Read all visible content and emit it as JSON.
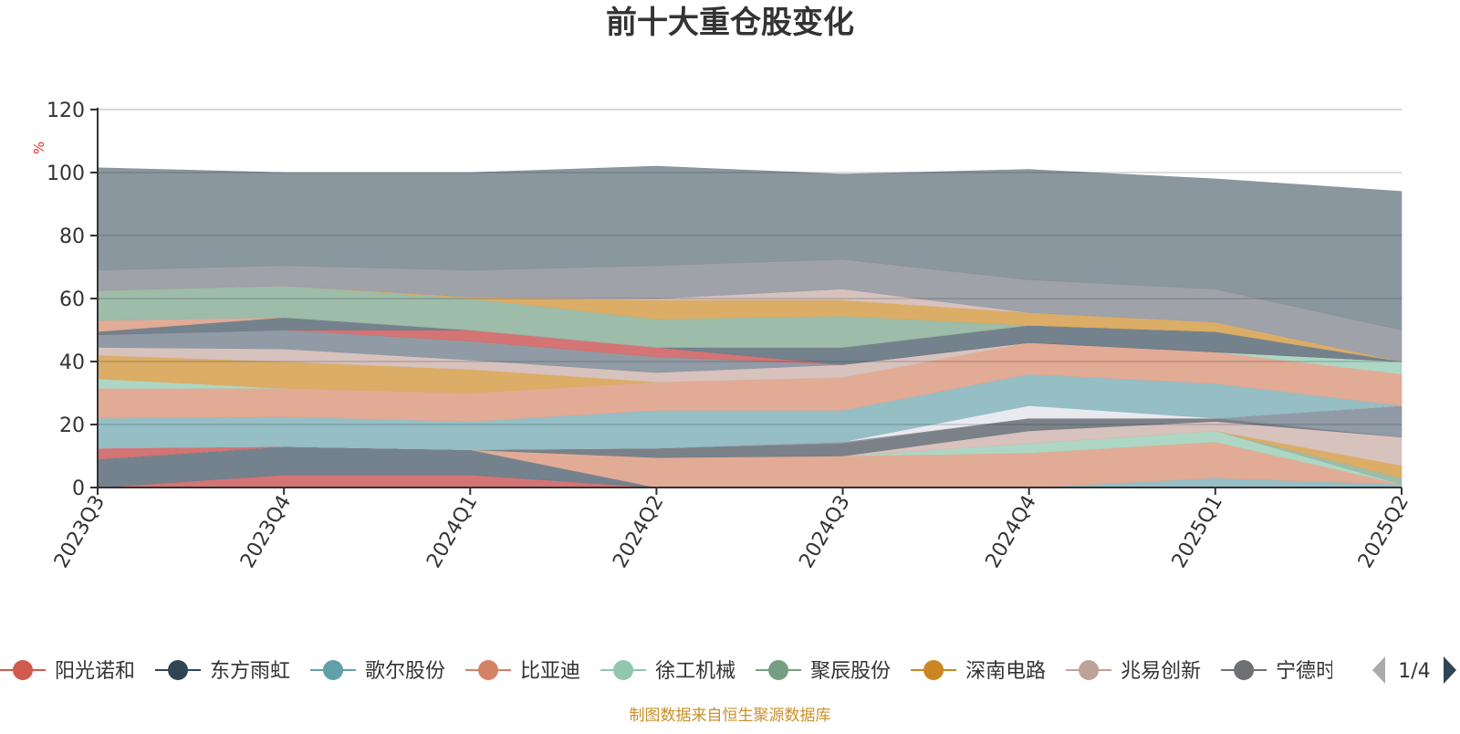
{
  "chart_data": {
    "type": "area",
    "title": "前十大重仓股变化",
    "ylabel": "%",
    "ylim": [
      0,
      120
    ],
    "yticks": [
      0,
      20,
      40,
      60,
      80,
      100,
      120
    ],
    "grid": true,
    "legend_position": "bottom",
    "categories": [
      "2023Q3",
      "2023Q4",
      "2024Q1",
      "2024Q2",
      "2024Q3",
      "2024Q4",
      "2025Q1",
      "2025Q2"
    ],
    "series": [
      {
        "name": "阳光诺和",
        "color": "#d26d6e",
        "values": [
          0,
          4,
          4,
          0,
          0,
          0,
          0,
          0
        ]
      },
      {
        "name": "东方雨虹",
        "color": "#6d7b87",
        "values": [
          9,
          9,
          8,
          0,
          0,
          0,
          0,
          0
        ]
      },
      {
        "name": "歌尔股份",
        "color": "#8fbbc2",
        "values": [
          0,
          0,
          0,
          0,
          0,
          0,
          3,
          1
        ]
      },
      {
        "name": "比亚迪",
        "color": "#e0a790",
        "values": [
          0,
          0,
          0,
          9.5,
          10,
          11,
          11.5,
          0
        ]
      },
      {
        "name": "徐工机械",
        "color": "#a9d5c1",
        "values": [
          0,
          0,
          0,
          0,
          0,
          3,
          3.5,
          0
        ]
      },
      {
        "name": "聚辰股份",
        "color": "#98b8a4",
        "values": [
          0,
          0,
          0,
          0,
          0,
          0,
          0,
          2
        ]
      },
      {
        "name": "深南电路",
        "color": "#daa95e",
        "values": [
          0,
          0,
          0,
          0,
          0,
          0,
          0,
          4
        ]
      },
      {
        "name": "兆易创新",
        "color": "#d6bfba",
        "values": [
          0,
          0,
          0,
          0,
          0,
          4,
          3,
          9
        ]
      },
      {
        "name": "宁德时代",
        "color": "#747a82",
        "values": [
          0,
          0,
          0,
          3,
          4,
          4,
          1,
          0
        ]
      },
      {
        "name": "",
        "color": "#8b96a0",
        "values": [
          0,
          0,
          0,
          0,
          0.5,
          0,
          0,
          10
        ]
      },
      {
        "name": "",
        "color": "#d26d6e",
        "values": [
          3.5,
          0,
          0,
          0,
          0,
          0,
          0,
          0
        ]
      },
      {
        "name": "",
        "color": "#e7e9ee",
        "values": [
          0,
          0,
          0,
          0,
          0,
          4,
          0,
          0
        ]
      },
      {
        "name": "",
        "color": "#8fbbc2",
        "values": [
          9.5,
          9.5,
          9,
          12,
          10,
          10,
          11,
          0
        ]
      },
      {
        "name": "",
        "color": "#e0a790",
        "values": [
          9.5,
          9,
          9,
          9,
          10.5,
          10,
          10,
          10
        ]
      },
      {
        "name": "",
        "color": "#a9d5c1",
        "values": [
          3,
          0,
          0,
          0,
          0,
          0,
          0,
          4
        ]
      },
      {
        "name": "",
        "color": "#daa95e",
        "values": [
          7.5,
          8.5,
          7.5,
          0,
          0,
          0,
          0,
          0
        ]
      },
      {
        "name": "",
        "color": "#d6bfba",
        "values": [
          2.5,
          4,
          3,
          3,
          4,
          0,
          0,
          0
        ]
      },
      {
        "name": "",
        "color": "#8b96a0",
        "values": [
          4,
          6,
          6,
          5,
          0,
          0,
          0,
          0
        ]
      },
      {
        "name": "",
        "color": "#d26d6e",
        "values": [
          0,
          0,
          3.5,
          3,
          0,
          0,
          0,
          0
        ]
      },
      {
        "name": "",
        "color": "#6d7b87",
        "values": [
          1,
          4,
          0,
          0,
          5.5,
          5.5,
          6.5,
          0
        ]
      },
      {
        "name": "",
        "color": "#e0a790",
        "values": [
          3.5,
          0,
          0,
          0,
          0,
          0,
          0,
          0
        ]
      },
      {
        "name": "",
        "color": "#98b8a4",
        "values": [
          9.5,
          10,
          10,
          9,
          10,
          0,
          0,
          0
        ]
      },
      {
        "name": "",
        "color": "#daa95e",
        "values": [
          0,
          0,
          0.5,
          6,
          5,
          4,
          3,
          0
        ]
      },
      {
        "name": "",
        "color": "#d6bfba",
        "values": [
          0,
          0,
          0,
          0.5,
          3.5,
          0,
          0,
          0
        ]
      },
      {
        "name": "",
        "color": "#9a9da3",
        "values": [
          6.5,
          6.5,
          8.5,
          10.5,
          9.5,
          10.5,
          10.5,
          10
        ]
      },
      {
        "name": "",
        "color": "#84919a",
        "values": [
          32.5,
          29.5,
          31,
          31.5,
          27,
          35,
          35,
          44
        ]
      }
    ]
  },
  "legend": {
    "items": [
      {
        "name": "阳光诺和",
        "color": "#d05a4d"
      },
      {
        "name": "东方雨虹",
        "color": "#2f4554"
      },
      {
        "name": "歌尔股份",
        "color": "#61a0a8"
      },
      {
        "name": "比亚迪",
        "color": "#d48265"
      },
      {
        "name": "徐工机械",
        "color": "#91c7ae"
      },
      {
        "name": "聚辰股份",
        "color": "#749f83"
      },
      {
        "name": "深南电路",
        "color": "#ca8622"
      },
      {
        "name": "兆易创新",
        "color": "#bda29a"
      },
      {
        "name": "宁德时代",
        "color": "#6e7074"
      }
    ],
    "page_indicator": "1/4"
  },
  "footer": {
    "source": "制图数据来自恒生聚源数据库"
  },
  "colors": {
    "title": "#333333",
    "axis": "#333333",
    "ylabel": "#e0332a",
    "footer": "#c9902a",
    "grid": "#cccccc"
  }
}
